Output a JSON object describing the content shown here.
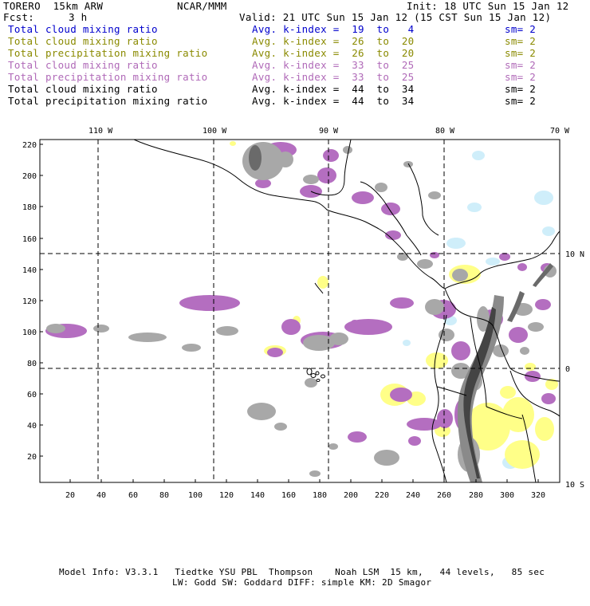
{
  "header": {
    "model": "TORERO  15km ARW",
    "center": "NCAR/MMM",
    "init": "Init: 18 UTC Sun 15 Jan 12",
    "fcst_label": "Fcst:",
    "fcst_value": "3 h",
    "valid": "Valid: 21 UTC Sun 15 Jan 12 (15 CST Sun 15 Jan 12)"
  },
  "legend_rows": [
    {
      "field": "Total cloud mixing ratio",
      "kindex": "Avg. k-index =  19  to   4",
      "sm": "sm= 2",
      "color": "#0000cc"
    },
    {
      "field": "Total cloud mixing ratio",
      "kindex": "Avg. k-index =  26  to  20",
      "sm": "sm= 2",
      "color": "#8a8a00"
    },
    {
      "field": "Total precipitation mixing ratio",
      "kindex": "Avg. k-index =  26  to  20",
      "sm": "sm= 2",
      "color": "#8a8a00"
    },
    {
      "field": "Total cloud mixing ratio",
      "kindex": "Avg. k-index =  33  to  25",
      "sm": "sm= 2",
      "color": "#b06ab8"
    },
    {
      "field": "Total precipitation mixing ratio",
      "kindex": "Avg. k-index =  33  to  25",
      "sm": "sm= 2",
      "color": "#b06ab8"
    },
    {
      "field": "Total cloud mixing ratio",
      "kindex": "Avg. k-index =  44  to  34",
      "sm": "sm= 2",
      "color": "#000000"
    },
    {
      "field": "Total precipitation mixing ratio",
      "kindex": "Avg. k-index =  44  to  34",
      "sm": "sm= 2",
      "color": "#000000"
    }
  ],
  "map": {
    "lon_labels": [
      "110 W",
      "100 W",
      "90 W",
      "80 W",
      "70 W"
    ],
    "lat_labels": [
      "10 N",
      "0",
      "10 S"
    ],
    "y_ticks": [
      "220",
      "200",
      "180",
      "160",
      "140",
      "120",
      "100",
      "80",
      "60",
      "40",
      "20"
    ],
    "x_ticks": [
      "20",
      "40",
      "60",
      "80",
      "100",
      "120",
      "140",
      "160",
      "180",
      "200",
      "220",
      "240",
      "260",
      "280",
      "300",
      "320"
    ],
    "colors": {
      "light_cloud": "#cfeefa",
      "yellow": "#ffff88",
      "purple": "#b46ec0",
      "gray": "#a8a8a8",
      "dark": "#444444",
      "coast": "#000000",
      "grid": "#000000"
    }
  },
  "footer": {
    "line1": "Model Info: V3.3.1   Tiedtke YSU PBL  Thompson    Noah LSM  15 km,   44 levels,   85 sec",
    "line2": "LW: Godd SW: Goddard DIFF: simple KM: 2D Smagor"
  }
}
